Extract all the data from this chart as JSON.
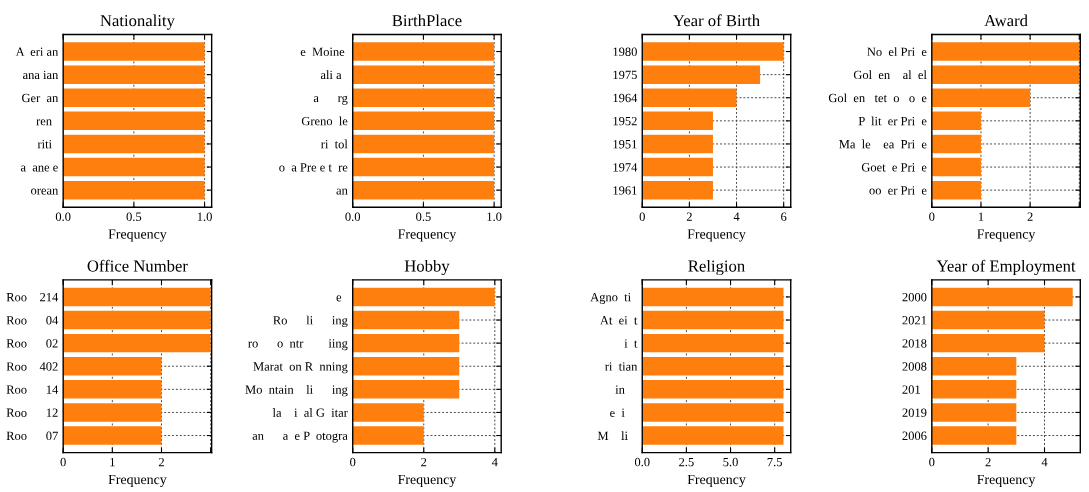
{
  "chart_data": [
    {
      "type": "bar",
      "orientation": "horizontal",
      "title": "Nationality",
      "xlabel": "Frequency",
      "categories": [
        "A  eri an",
        "ana ian",
        "Ger  an",
        "ren  ",
        "riti  ",
        "a  ane e",
        "orean"
      ],
      "values": [
        1,
        1,
        1,
        1,
        1,
        1,
        1
      ],
      "color": "#ff7f0e",
      "xlim": [
        0,
        1.05
      ],
      "xticks": [
        {
          "value": 0,
          "label": "0.0"
        },
        {
          "value": 0.5,
          "label": "0.5"
        },
        {
          "value": 1,
          "label": "1.0"
        }
      ],
      "grid": true
    },
    {
      "type": "bar",
      "orientation": "horizontal",
      "title": "BirthPlace",
      "xlabel": "Frequency",
      "categories": [
        "e  Moine ",
        "ali a  ",
        "a      rg",
        "Greno  le",
        "ri  tol",
        "o  a Pre e t  re",
        "an"
      ],
      "values": [
        1,
        1,
        1,
        1,
        1,
        1,
        1
      ],
      "color": "#ff7f0e",
      "xlim": [
        0,
        1.05
      ],
      "xticks": [
        {
          "value": 0,
          "label": "0.0"
        },
        {
          "value": 0.5,
          "label": "0.5"
        },
        {
          "value": 1,
          "label": "1.0"
        }
      ],
      "grid": true
    },
    {
      "type": "bar",
      "orientation": "horizontal",
      "title": "Year of Birth",
      "xlabel": "Frequency",
      "categories": [
        "1980",
        "1975",
        "1964",
        "1952",
        "1951",
        "1974",
        "1961"
      ],
      "values": [
        6,
        5,
        4,
        3,
        3,
        3,
        3
      ],
      "color": "#ff7f0e",
      "xlim": [
        0,
        6.3
      ],
      "xticks": [
        0,
        2,
        4,
        6
      ],
      "grid": true
    },
    {
      "type": "bar",
      "orientation": "horizontal",
      "title": "Award",
      "xlabel": "Frequency",
      "categories": [
        "No  el Pri  e",
        "Gol  en    al  el",
        "Gol  en   tet  o   o  e",
        "P  lit  er Pri  e",
        "Ma  le    ea  Pri  e",
        "Goet  e Pri  e",
        "oo  er Pri  e"
      ],
      "values": [
        3,
        3,
        2,
        1,
        1,
        1,
        1
      ],
      "color": "#ff7f0e",
      "xlim": [
        0,
        3.02
      ],
      "xticks": [
        0,
        1,
        2,
        {
          "value": 3,
          "label": null
        }
      ],
      "grid": true
    },
    {
      "type": "bar",
      "orientation": "horizontal",
      "title": "Office Number",
      "xlabel": "Frequency",
      "categories": [
        "Roo    214",
        "Roo      04",
        "Roo      02",
        "Roo    402",
        "Roo      14",
        "Roo      12",
        "Roo      07"
      ],
      "values": [
        3,
        3,
        3,
        2,
        2,
        2,
        2
      ],
      "color": "#ff7f0e",
      "xlim": [
        0,
        3.02
      ],
      "xticks": [
        0,
        1,
        2,
        {
          "value": 3,
          "label": null
        }
      ],
      "grid": true
    },
    {
      "type": "bar",
      "orientation": "horizontal",
      "title": "Hobby",
      "xlabel": "Frequency",
      "categories": [
        "e  ",
        "Ro      li      ing",
        "ro      o  ntr        iing",
        "Marat  on R  nning",
        "Mo  ntain    li      ing",
        "la    i  al G  itar",
        "an      a  e P  otogra"
      ],
      "values": [
        4,
        3,
        3,
        3,
        3,
        2,
        2
      ],
      "color": "#ff7f0e",
      "xlim": [
        0,
        4.18
      ],
      "xticks": [
        0,
        2,
        4
      ],
      "grid": true
    },
    {
      "type": "bar",
      "orientation": "horizontal",
      "title": "Religion",
      "xlabel": "Frequency",
      "categories": [
        "Agno  ti  ",
        "At  ei  t",
        "i  t",
        "ri  tian",
        "in    ",
        "e  i    ",
        "M    li   "
      ],
      "values": [
        8,
        8,
        8,
        8,
        8,
        8,
        8
      ],
      "color": "#ff7f0e",
      "xlim": [
        0,
        8.41
      ],
      "xticks": [
        {
          "value": 0,
          "label": "0.0"
        },
        {
          "value": 2.5,
          "label": "2.5"
        },
        {
          "value": 5,
          "label": "5.0"
        },
        {
          "value": 7.5,
          "label": "7.5"
        }
      ],
      "grid": true
    },
    {
      "type": "bar",
      "orientation": "horizontal",
      "title": "Year of Employment",
      "xlabel": "Frequency",
      "categories": [
        "2000",
        "2021",
        "2018",
        "2008",
        "201  ",
        "2019",
        "2006"
      ],
      "values": [
        5,
        4,
        4,
        3,
        3,
        3,
        3
      ],
      "color": "#ff7f0e",
      "xlim": [
        0,
        5.27
      ],
      "xticks": [
        0,
        2,
        4
      ],
      "grid": true
    }
  ]
}
